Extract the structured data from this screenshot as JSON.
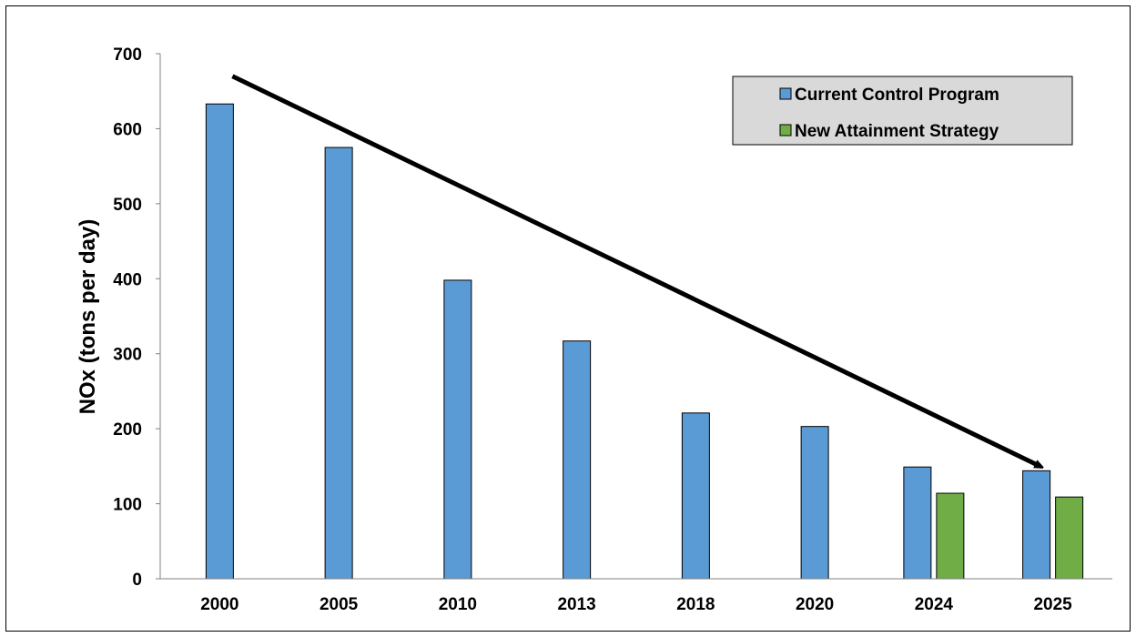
{
  "chart_data": {
    "type": "bar",
    "categories": [
      "2000",
      "2005",
      "2010",
      "2013",
      "2018",
      "2020",
      "2024",
      "2025"
    ],
    "series": [
      {
        "name": "Current Control Program",
        "color": "#5b9bd5",
        "values": [
          633,
          575,
          398,
          317,
          221,
          203,
          149,
          144
        ]
      },
      {
        "name": "New Attainment Strategy",
        "color": "#70ad47",
        "values": [
          null,
          null,
          null,
          null,
          null,
          null,
          114,
          109
        ]
      }
    ],
    "title": "",
    "xlabel": "",
    "ylabel": "NOx (tons per day)",
    "ylim": [
      0,
      700
    ],
    "yticks": [
      0,
      100,
      200,
      300,
      400,
      500,
      600,
      700
    ],
    "grid": false,
    "legend_position": "top-right",
    "trend_arrow": {
      "from": {
        "category": "2000",
        "value": 670
      },
      "to": {
        "category": "2025",
        "value": 150
      }
    }
  }
}
